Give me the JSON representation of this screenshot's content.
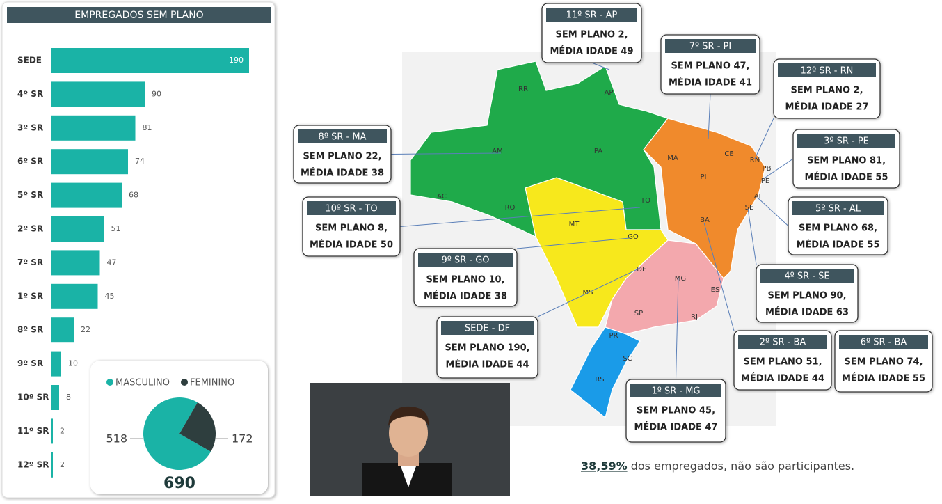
{
  "chart_data": [
    {
      "type": "bar",
      "title": "EMPREGADOS SEM PLANO",
      "categories": [
        "SEDE",
        "4º SR",
        "3º SR",
        "6º SR",
        "5º SR",
        "2º SR",
        "7º SR",
        "1º SR",
        "8º SR",
        "9º SR",
        "10º SR",
        "11º SR",
        "12º SR"
      ],
      "values": [
        190,
        90,
        81,
        74,
        68,
        51,
        47,
        45,
        22,
        10,
        8,
        2,
        2
      ],
      "color": "#1ab3a6"
    },
    {
      "type": "pie",
      "categories": [
        "MASCULINO",
        "FEMININO"
      ],
      "values": [
        518,
        172
      ],
      "colors": [
        "#1ab3a6",
        "#2e3e3e"
      ],
      "total": 690
    }
  ],
  "map": {
    "states": [
      "RR",
      "AP",
      "AM",
      "PA",
      "MA",
      "CE",
      "RN",
      "PB",
      "PE",
      "AL",
      "SE",
      "PI",
      "TO",
      "AC",
      "RO",
      "MT",
      "GO",
      "DF",
      "BA",
      "MG",
      "ES",
      "MS",
      "SP",
      "RJ",
      "PR",
      "SC",
      "RS"
    ],
    "callouts": [
      {
        "title": "11º SR - AP",
        "line1": "SEM PLANO 2,",
        "line2": "MÉDIA IDADE 49"
      },
      {
        "title": "7º SR - PI",
        "line1": "SEM PLANO 47,",
        "line2": "MÉDIA IDADE 41"
      },
      {
        "title": "12º SR - RN",
        "line1": "SEM PLANO 2,",
        "line2": "MÉDIA IDADE 27"
      },
      {
        "title": "8º SR - MA",
        "line1": "SEM PLANO 22,",
        "line2": "MÉDIA IDADE 38"
      },
      {
        "title": "3º SR - PE",
        "line1": "SEM PLANO 81,",
        "line2": "MÉDIA IDADE 55"
      },
      {
        "title": "10º SR - TO",
        "line1": "SEM PLANO 8,",
        "line2": "MÉDIA IDADE 50"
      },
      {
        "title": "5º SR - AL",
        "line1": "SEM PLANO 68,",
        "line2": "MÉDIA IDADE 55"
      },
      {
        "title": "9º SR - GO",
        "line1": "SEM PLANO 10,",
        "line2": "MÉDIA IDADE 38"
      },
      {
        "title": "4º SR - SE",
        "line1": "SEM PLANO 90,",
        "line2": "MÉDIA IDADE 63"
      },
      {
        "title": "SEDE - DF",
        "line1": "SEM PLANO 190,",
        "line2": "MÉDIA IDADE 44"
      },
      {
        "title": "2º SR - BA",
        "line1": "SEM PLANO 51,",
        "line2": "MÉDIA IDADE 44"
      },
      {
        "title": "6º SR - BA",
        "line1": "SEM PLANO 74,",
        "line2": "MÉDIA IDADE 55"
      },
      {
        "title": "1º SR - MG",
        "line1": "SEM PLANO 45,",
        "line2": "MÉDIA IDADE 47"
      }
    ]
  },
  "footer": {
    "highlight": "38,59%",
    "text": " dos empregados, não são participantes."
  }
}
